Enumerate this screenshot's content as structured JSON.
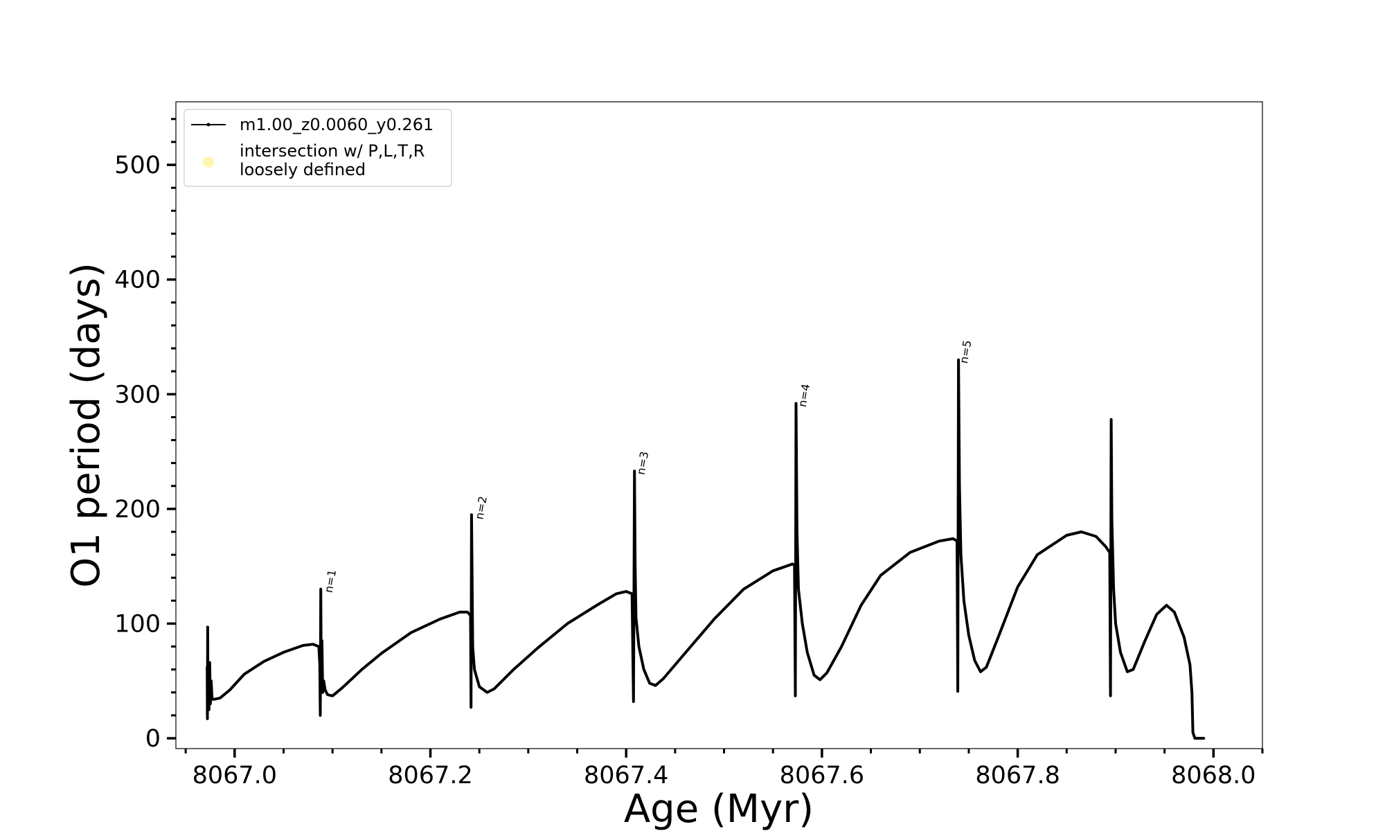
{
  "chart_data": {
    "type": "line",
    "xlabel": "Age (Myr)",
    "ylabel": "O1 period (days)",
    "xlim": [
      8066.94,
      8068.05
    ],
    "ylim": [
      -9,
      555
    ],
    "x_ticks": [
      8067.0,
      8067.2,
      8067.4,
      8067.6,
      8067.8,
      8068.0
    ],
    "x_tick_labels": [
      "8067.0",
      "8067.2",
      "8067.4",
      "8067.6",
      "8067.8",
      "8068.0"
    ],
    "y_ticks": [
      0,
      100,
      200,
      300,
      400,
      500
    ],
    "y_tick_labels": [
      "0",
      "100",
      "200",
      "300",
      "400",
      "500"
    ],
    "x_minor_step": 0.05,
    "y_minor_step": 20,
    "grid": false,
    "legend": {
      "position": "top-left",
      "entries": [
        {
          "label": "m1.00_z0.0060_y0.261",
          "marker": "line-dot",
          "color": "#000000"
        },
        {
          "label_lines": [
            "intersection w/ P,L,T,R",
            "loosely defined"
          ],
          "marker": "circle",
          "color": "#fff7b0"
        }
      ]
    },
    "annotations": [
      {
        "text": "n=1",
        "x": 8067.091,
        "y": 130
      },
      {
        "text": "n=2",
        "x": 8067.245,
        "y": 194
      },
      {
        "text": "n=3",
        "x": 8067.41,
        "y": 233
      },
      {
        "text": "n=4",
        "x": 8067.575,
        "y": 292
      },
      {
        "text": "n=5",
        "x": 8067.74,
        "y": 330
      }
    ],
    "series": [
      {
        "name": "m1.00_z0.0060_y0.261",
        "color": "#000000",
        "points": [
          [
            8066.972,
            62
          ],
          [
            8066.9722,
            17
          ],
          [
            8066.9725,
            97
          ],
          [
            8066.9728,
            30
          ],
          [
            8066.9733,
            65
          ],
          [
            8066.9738,
            25
          ],
          [
            8066.9745,
            66
          ],
          [
            8066.9752,
            30
          ],
          [
            8066.976,
            50
          ],
          [
            8066.977,
            34
          ],
          [
            8066.979,
            34
          ],
          [
            8066.985,
            35
          ],
          [
            8066.995,
            42
          ],
          [
            8067.01,
            56
          ],
          [
            8067.03,
            67
          ],
          [
            8067.05,
            75
          ],
          [
            8067.07,
            81
          ],
          [
            8067.08,
            82
          ],
          [
            8067.086,
            80
          ],
          [
            8067.087,
            65
          ],
          [
            8067.0875,
            20
          ],
          [
            8067.088,
            130
          ],
          [
            8067.0886,
            40
          ],
          [
            8067.0892,
            85
          ],
          [
            8067.09,
            40
          ],
          [
            8067.091,
            50
          ],
          [
            8067.0925,
            42
          ],
          [
            8067.095,
            38
          ],
          [
            8067.1,
            37
          ],
          [
            8067.11,
            44
          ],
          [
            8067.13,
            60
          ],
          [
            8067.15,
            74
          ],
          [
            8067.18,
            92
          ],
          [
            8067.21,
            104
          ],
          [
            8067.23,
            110
          ],
          [
            8067.238,
            110
          ],
          [
            8067.241,
            107
          ],
          [
            8067.2415,
            27
          ],
          [
            8067.242,
            195
          ],
          [
            8067.2425,
            150
          ],
          [
            8067.2432,
            80
          ],
          [
            8067.245,
            60
          ],
          [
            8067.25,
            45
          ],
          [
            8067.258,
            40
          ],
          [
            8067.265,
            43
          ],
          [
            8067.285,
            60
          ],
          [
            8067.31,
            79
          ],
          [
            8067.34,
            100
          ],
          [
            8067.37,
            116
          ],
          [
            8067.39,
            126
          ],
          [
            8067.4,
            128
          ],
          [
            8067.406,
            126
          ],
          [
            8067.4075,
            32
          ],
          [
            8067.4085,
            233
          ],
          [
            8067.4092,
            150
          ],
          [
            8067.41,
            105
          ],
          [
            8067.413,
            80
          ],
          [
            8067.418,
            60
          ],
          [
            8067.424,
            48
          ],
          [
            8067.43,
            46
          ],
          [
            8067.438,
            52
          ],
          [
            8067.46,
            74
          ],
          [
            8067.49,
            104
          ],
          [
            8067.52,
            130
          ],
          [
            8067.55,
            146
          ],
          [
            8067.57,
            152
          ],
          [
            8067.572,
            151
          ],
          [
            8067.5728,
            37
          ],
          [
            8067.5735,
            292
          ],
          [
            8067.5745,
            180
          ],
          [
            8067.576,
            130
          ],
          [
            8067.58,
            100
          ],
          [
            8067.585,
            75
          ],
          [
            8067.592,
            55
          ],
          [
            8067.598,
            51
          ],
          [
            8067.605,
            57
          ],
          [
            8067.62,
            80
          ],
          [
            8067.64,
            116
          ],
          [
            8067.66,
            142
          ],
          [
            8067.69,
            162
          ],
          [
            8067.72,
            172
          ],
          [
            8067.734,
            174
          ],
          [
            8067.738,
            172
          ],
          [
            8067.7388,
            41
          ],
          [
            8067.7395,
            330
          ],
          [
            8067.7405,
            220
          ],
          [
            8067.742,
            160
          ],
          [
            8067.745,
            120
          ],
          [
            8067.75,
            90
          ],
          [
            8067.756,
            68
          ],
          [
            8067.762,
            58
          ],
          [
            8067.768,
            62
          ],
          [
            8067.78,
            88
          ],
          [
            8067.8,
            132
          ],
          [
            8067.82,
            160
          ],
          [
            8067.85,
            177
          ],
          [
            8067.865,
            180
          ],
          [
            8067.88,
            176
          ],
          [
            8067.89,
            167
          ],
          [
            8067.894,
            162
          ],
          [
            8067.8948,
            37
          ],
          [
            8067.8955,
            278
          ],
          [
            8067.8962,
            190
          ],
          [
            8067.898,
            130
          ],
          [
            8067.9,
            100
          ],
          [
            8067.905,
            75
          ],
          [
            8067.912,
            58
          ],
          [
            8067.918,
            60
          ],
          [
            8067.93,
            85
          ],
          [
            8067.942,
            108
          ],
          [
            8067.952,
            116
          ],
          [
            8067.96,
            110
          ],
          [
            8067.97,
            88
          ],
          [
            8067.976,
            64
          ],
          [
            8067.978,
            40
          ],
          [
            8067.979,
            5
          ],
          [
            8067.981,
            0
          ],
          [
            8067.99,
            0
          ]
        ]
      }
    ]
  }
}
